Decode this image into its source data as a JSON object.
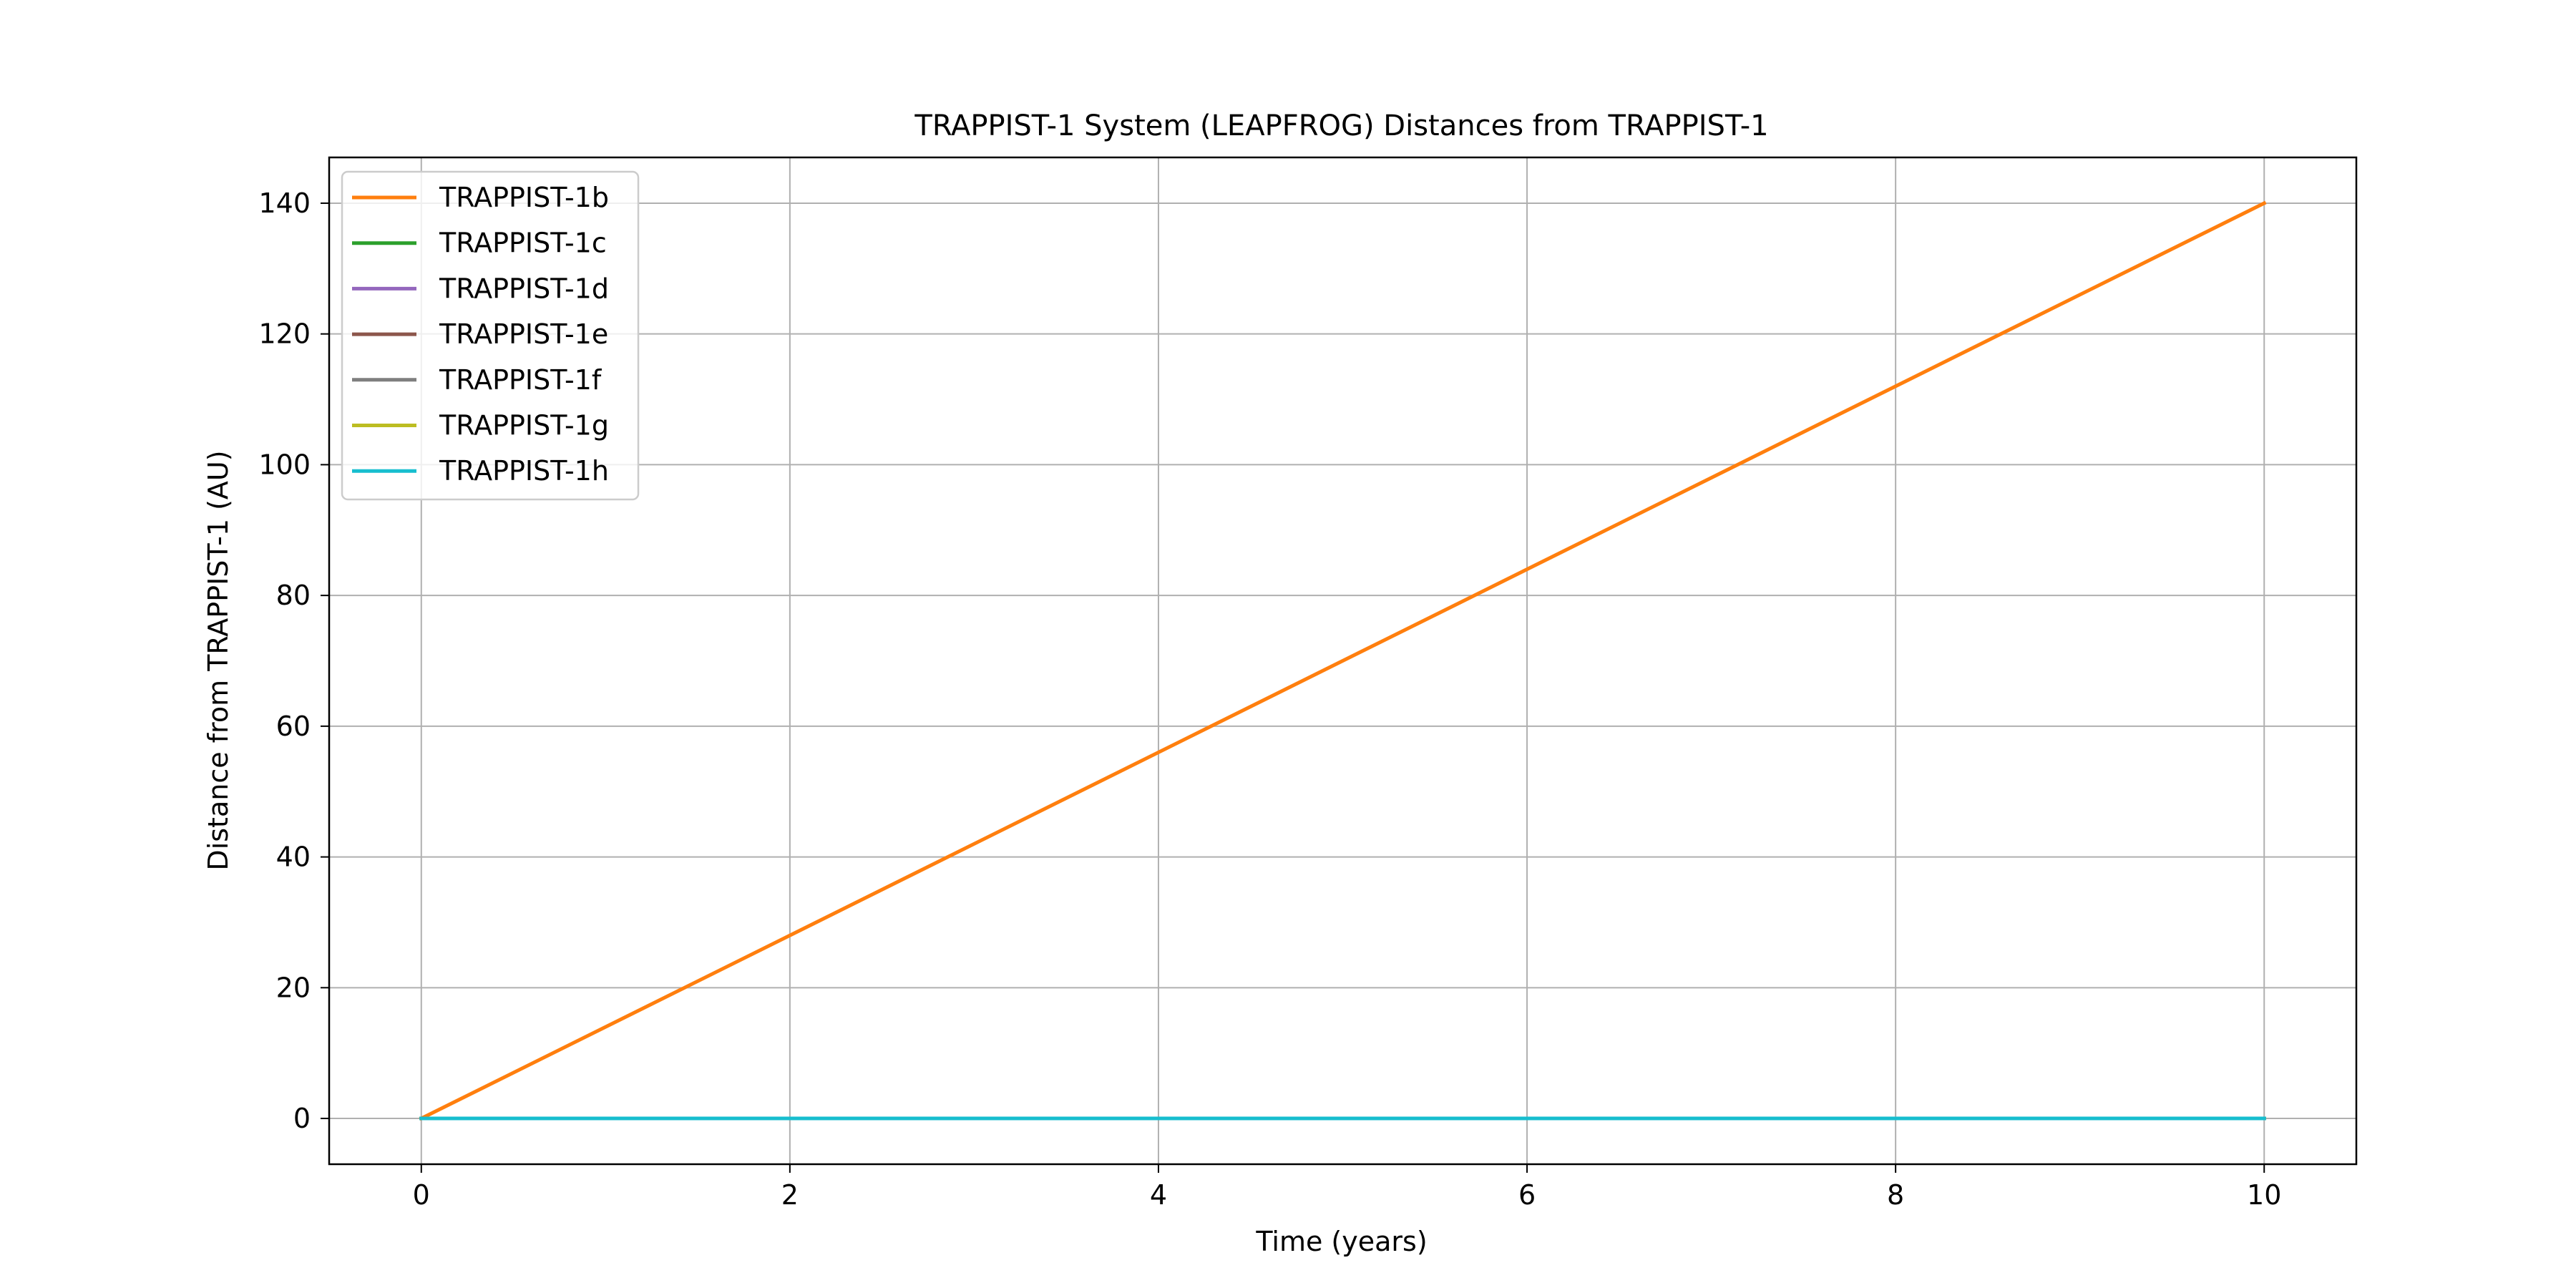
{
  "chart_data": {
    "type": "line",
    "title": "TRAPPIST-1 System (LEAPFROG) Distances from TRAPPIST-1",
    "xlabel": "Time (years)",
    "ylabel": "Distance from TRAPPIST-1 (AU)",
    "xlim": [
      -0.5,
      10.5
    ],
    "ylim": [
      -7,
      147
    ],
    "xticks": [
      0,
      2,
      4,
      6,
      8,
      10
    ],
    "yticks": [
      0,
      20,
      40,
      60,
      80,
      100,
      120,
      140
    ],
    "grid": true,
    "legend_position": "upper-left",
    "series": [
      {
        "name": "TRAPPIST-1b",
        "color": "#ff7f0e",
        "x": [
          0,
          10
        ],
        "y": [
          0,
          140
        ]
      },
      {
        "name": "TRAPPIST-1c",
        "color": "#2ca02c",
        "x": [
          0,
          10
        ],
        "y": [
          0,
          0
        ]
      },
      {
        "name": "TRAPPIST-1d",
        "color": "#9467bd",
        "x": [
          0,
          10
        ],
        "y": [
          0,
          0
        ]
      },
      {
        "name": "TRAPPIST-1e",
        "color": "#8c564b",
        "x": [
          0,
          10
        ],
        "y": [
          0,
          0
        ]
      },
      {
        "name": "TRAPPIST-1f",
        "color": "#7f7f7f",
        "x": [
          0,
          10
        ],
        "y": [
          0,
          0
        ]
      },
      {
        "name": "TRAPPIST-1g",
        "color": "#bcbd22",
        "x": [
          0,
          10
        ],
        "y": [
          0,
          0
        ]
      },
      {
        "name": "TRAPPIST-1h",
        "color": "#17becf",
        "x": [
          0,
          10
        ],
        "y": [
          0,
          0
        ]
      }
    ]
  }
}
